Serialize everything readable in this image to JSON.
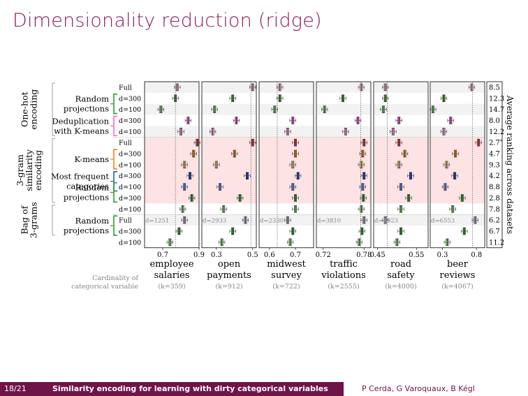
{
  "slide": {
    "title": "Dimensionality reduction (ridge)",
    "page": "18/21",
    "footer_title": "Similarity encoding for learning with dirty categorical variables",
    "authors": "P Cerda, G Varoquaux, B Kégl"
  },
  "chart_data": {
    "type": "boxplot",
    "right_axis_label": "Average ranking across datasets",
    "cardinality_label": [
      "Cardinality of",
      "categorical variable"
    ],
    "groups": [
      {
        "label": [
          "One-hot",
          "encoding"
        ],
        "rows": [
          0,
          4
        ],
        "shade": "#f2f2f2"
      },
      {
        "label": [
          "3-gram",
          "similarity",
          "encoding"
        ],
        "rows": [
          5,
          10
        ],
        "shade": "#fde3e3"
      },
      {
        "label": [
          "Bag of",
          "3-grams"
        ],
        "rows": [
          11,
          13
        ],
        "shade": "#f2f2f2"
      }
    ],
    "methods": [
      {
        "label": [
          "Random",
          "projections"
        ],
        "rows": [
          1,
          2
        ],
        "bracket": "#2ca02c"
      },
      {
        "label": [
          "Deduplication",
          "with K-means"
        ],
        "rows": [
          3,
          4
        ],
        "bracket": "#ff66cc"
      },
      {
        "label": [
          "K-means"
        ],
        "rows": [
          6,
          7
        ],
        "bracket": "#ff7f0e"
      },
      {
        "label": [
          "Most frequent",
          "categories"
        ],
        "rows": [
          8,
          9
        ],
        "bracket": "#1f5fbf"
      },
      {
        "label": [
          "Random",
          "projections"
        ],
        "rows": [
          9,
          10
        ],
        "bracket": "#2ca02c"
      },
      {
        "label": [
          "Random",
          "projections"
        ],
        "rows": [
          12,
          13
        ],
        "bracket": "#2ca02c"
      }
    ],
    "rows": [
      {
        "label": "Full",
        "color": "#f4a9c0",
        "rank": "8.5"
      },
      {
        "label": "d=300",
        "color": "#4c9a2a",
        "rank": "12.3"
      },
      {
        "label": "d=100",
        "color": "#74c476",
        "rank": "14.7"
      },
      {
        "label": "d=300",
        "color": "#ff4fd8",
        "rank": "8.0"
      },
      {
        "label": "d=100",
        "color": "#ff9ee6",
        "rank": "12.2"
      },
      {
        "label": "Full",
        "color": "#e8383d",
        "rank": "2.7*"
      },
      {
        "label": "d=300",
        "color": "#ff8c1a",
        "rank": "4.7"
      },
      {
        "label": "d=100",
        "color": "#ffc080",
        "rank": "9.3"
      },
      {
        "label": "d=300",
        "color": "#1e3fd8",
        "rank": "4.2"
      },
      {
        "label": "d=100",
        "color": "#6c8cf0",
        "rank": "8.8"
      },
      {
        "label": "d=300",
        "color": "#2ca02c",
        "rank": "2.8"
      },
      {
        "label": "d=100",
        "color": "#7fcc6a",
        "rank": "7.8"
      },
      {
        "label": "Full",
        "color": "#b9a6d6",
        "rank": "6.2"
      },
      {
        "label": "d=300",
        "color": "#2ca02c",
        "rank": "6.7"
      },
      {
        "label": "d=100",
        "color": "#7fcc6a",
        "rank": "11.2"
      }
    ],
    "datasets": [
      {
        "name": [
          "employee",
          "salaries"
        ],
        "k": "(k=359)",
        "d": "d=1251",
        "xlim": [
          0.6,
          0.9
        ],
        "ticks": [
          0.7,
          0.9
        ],
        "ref": 0.77,
        "medians": [
          0.78,
          0.77,
          0.69,
          0.84,
          0.8,
          0.89,
          0.87,
          0.82,
          0.85,
          0.82,
          0.86,
          0.81,
          0.82,
          0.79,
          0.74
        ]
      },
      {
        "name": [
          "open",
          "payments"
        ],
        "k": "(k=912)",
        "d": "d=2933",
        "xlim": [
          0.22,
          0.52
        ],
        "ticks": [
          0.3,
          0.5
        ],
        "ref": 0.49,
        "medians": [
          0.5,
          0.39,
          0.29,
          0.41,
          0.28,
          0.5,
          0.4,
          0.3,
          0.47,
          0.32,
          0.43,
          0.34,
          0.46,
          0.39,
          0.33
        ]
      },
      {
        "name": [
          "midwest",
          "survey"
        ],
        "k": "(k=722)",
        "d": "d=2330",
        "xlim": [
          0.56,
          0.77
        ],
        "ticks": [
          0.6,
          0.7
        ],
        "ref": 0.63,
        "medians": [
          0.64,
          0.64,
          0.62,
          0.69,
          0.67,
          0.7,
          0.7,
          0.69,
          0.71,
          0.69,
          0.7,
          0.7,
          0.67,
          0.69,
          0.68
        ]
      },
      {
        "name": [
          "traffic",
          "violations"
        ],
        "k": "(k=2555)",
        "d": "d=3810",
        "xlim": [
          0.71,
          0.79
        ],
        "ticks": [
          0.72,
          0.78
        ],
        "ref": 0.775,
        "medians": [
          0.776,
          0.749,
          0.722,
          0.771,
          0.753,
          0.78,
          0.778,
          0.776,
          0.78,
          0.778,
          0.779,
          0.776,
          0.78,
          0.777,
          0.773
        ]
      },
      {
        "name": [
          "road",
          "safety"
        ],
        "k": "(k=4000)",
        "d": "d=4923",
        "xlim": [
          0.44,
          0.58
        ],
        "ticks": [
          0.45,
          0.55
        ],
        "ref": 0.475,
        "medians": [
          0.47,
          0.47,
          0.465,
          0.505,
          0.49,
          0.505,
          0.52,
          0.505,
          0.535,
          0.51,
          0.53,
          0.51,
          0.47,
          0.51,
          0.5
        ]
      },
      {
        "name": [
          "beer",
          "reviews"
        ],
        "k": "(k=4067)",
        "d": "d=6553",
        "xlim": [
          0.12,
          0.92
        ],
        "ticks": [
          0.3,
          0.8
        ],
        "ref": 0.74,
        "medians": [
          0.73,
          0.32,
          0.16,
          0.42,
          0.32,
          0.83,
          0.49,
          0.36,
          0.48,
          0.34,
          0.59,
          0.45,
          0.78,
          0.62,
          0.37
        ]
      }
    ]
  }
}
